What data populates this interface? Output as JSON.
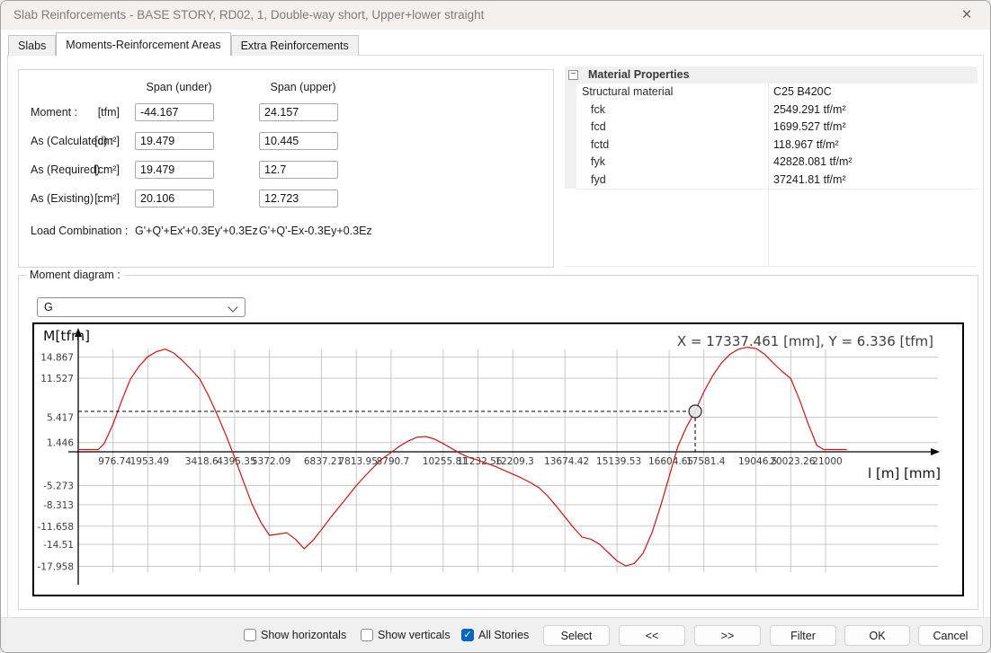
{
  "window": {
    "title": "Slab Reinforcements - BASE STORY, RD02, 1, Double-way short, Upper+lower straight",
    "close_glyph": "×"
  },
  "tabs": [
    {
      "label": "Slabs"
    },
    {
      "label": "Moments-Reinforcement Areas"
    },
    {
      "label": "Extra Reinforcements"
    }
  ],
  "form": {
    "col_headers": [
      "Span (under)",
      "Span (upper)"
    ],
    "rows": [
      {
        "label": "Moment :",
        "unit": "[tfm]",
        "under": "-44.167",
        "upper": "24.157"
      },
      {
        "label": "As (Calculated) :",
        "unit": "[cm²]",
        "under": "19.479",
        "upper": "10.445"
      },
      {
        "label": "As (Required) :",
        "unit": "[cm²]",
        "under": "19.479",
        "upper": "12.7"
      },
      {
        "label": "As (Existing) :",
        "unit": "[cm²]",
        "under": "20.106",
        "upper": "12.723"
      }
    ],
    "load_combination": {
      "label": "Load Combination :",
      "under": "G'+Q'+Ex'+0.3Ey'+0.3Ez",
      "upper": "G'+Q'-Ex-0.3Ey+0.3Ez"
    }
  },
  "material_properties": {
    "title": "Material Properties",
    "collapse_glyph": "−",
    "rows": [
      {
        "name": "Structural material",
        "value": "C25 B420C",
        "indent": 0
      },
      {
        "name": "fck",
        "value": "2549.291 tf/m²",
        "indent": 1
      },
      {
        "name": "fcd",
        "value": "1699.527 tf/m²",
        "indent": 1
      },
      {
        "name": "fctd",
        "value": "118.967 tf/m²",
        "indent": 1
      },
      {
        "name": "fyk",
        "value": "42828.081 tf/m²",
        "indent": 1
      },
      {
        "name": "fyd",
        "value": "37241.81 tf/m²",
        "indent": 1
      }
    ]
  },
  "moment_diagram": {
    "group_label": "Moment diagram :",
    "selected_option": "G"
  },
  "chart_data": {
    "type": "line",
    "ylabel": "M[tfm]",
    "xlabel": "l [m] [mm]",
    "readout": "X = 17337.461 [mm],  Y = 6.336 [tfm]",
    "marker": {
      "x": 17337.461,
      "y": 6.336
    },
    "line_color": "#cc1414",
    "grid_color": "#c9c9c9",
    "xlim": [
      0,
      23000
    ],
    "ylim": [
      -19.5,
      17.5
    ],
    "x_ticks": [
      976.74,
      1953.49,
      3418.6,
      4395.35,
      5372.09,
      6837.21,
      7813.95,
      8790.7,
      10255.81,
      11232.56,
      12209.3,
      13674.42,
      15139.53,
      16604.65,
      17581.4,
      19046.5,
      20023.26,
      21000
    ],
    "y_ticks": [
      14.867,
      11.527,
      5.417,
      1.446,
      -5.273,
      -8.313,
      -11.658,
      -14.51,
      -17.958
    ],
    "series": [
      {
        "name": "G",
        "points": [
          [
            0,
            0.35
          ],
          [
            560,
            0.35
          ],
          [
            730,
            1.3
          ],
          [
            976,
            4.3
          ],
          [
            1220,
            8.0
          ],
          [
            1465,
            11.4
          ],
          [
            1709,
            13.4
          ],
          [
            1953,
            14.9
          ],
          [
            2197,
            15.7
          ],
          [
            2441,
            16.1
          ],
          [
            2686,
            15.5
          ],
          [
            2930,
            14.3
          ],
          [
            3174,
            12.9
          ],
          [
            3418,
            11.4
          ],
          [
            3662,
            8.8
          ],
          [
            3906,
            5.8
          ],
          [
            4151,
            2.6
          ],
          [
            4395,
            -0.9
          ],
          [
            4639,
            -4.6
          ],
          [
            4883,
            -8.2
          ],
          [
            5128,
            -11.0
          ],
          [
            5372,
            -13.1
          ],
          [
            5616,
            -12.9
          ],
          [
            5860,
            -12.7
          ],
          [
            6104,
            -13.7
          ],
          [
            6348,
            -15.2
          ],
          [
            6593,
            -13.9
          ],
          [
            6837,
            -12.2
          ],
          [
            7081,
            -10.4
          ],
          [
            7325,
            -8.7
          ],
          [
            7570,
            -7.0
          ],
          [
            7814,
            -5.3
          ],
          [
            8058,
            -3.8
          ],
          [
            8302,
            -2.4
          ],
          [
            8546,
            -1.1
          ],
          [
            8791,
            -0.1
          ],
          [
            9035,
            0.9
          ],
          [
            9279,
            1.7
          ],
          [
            9523,
            2.3
          ],
          [
            9767,
            2.4
          ],
          [
            10011,
            2.0
          ],
          [
            10256,
            1.3
          ],
          [
            10500,
            0.5
          ],
          [
            10744,
            -0.3
          ],
          [
            10988,
            -0.9
          ],
          [
            11233,
            -1.3
          ],
          [
            11477,
            -1.8
          ],
          [
            11721,
            -2.3
          ],
          [
            11965,
            -2.9
          ],
          [
            12209,
            -3.5
          ],
          [
            12453,
            -4.1
          ],
          [
            12698,
            -4.8
          ],
          [
            12942,
            -5.6
          ],
          [
            13186,
            -6.9
          ],
          [
            13430,
            -8.5
          ],
          [
            13674,
            -10.2
          ],
          [
            13919,
            -11.9
          ],
          [
            14163,
            -13.4
          ],
          [
            14407,
            -13.7
          ],
          [
            14651,
            -14.5
          ],
          [
            14895,
            -15.8
          ],
          [
            15140,
            -17.1
          ],
          [
            15384,
            -17.9
          ],
          [
            15628,
            -17.5
          ],
          [
            15872,
            -15.9
          ],
          [
            16116,
            -12.8
          ],
          [
            16361,
            -8.6
          ],
          [
            16605,
            -3.9
          ],
          [
            16849,
            0.8
          ],
          [
            17093,
            3.9
          ],
          [
            17337,
            6.336
          ],
          [
            17581,
            9.4
          ],
          [
            17825,
            11.9
          ],
          [
            18070,
            13.9
          ],
          [
            18314,
            15.3
          ],
          [
            18558,
            16.1
          ],
          [
            18802,
            16.4
          ],
          [
            19046,
            16.2
          ],
          [
            19291,
            15.3
          ],
          [
            19535,
            13.9
          ],
          [
            19779,
            12.6
          ],
          [
            20023,
            11.5
          ],
          [
            20267,
            8.2
          ],
          [
            20512,
            4.4
          ],
          [
            20756,
            1.0
          ],
          [
            20950,
            0.35
          ],
          [
            21600,
            0.35
          ]
        ]
      }
    ]
  },
  "bottom_bar": {
    "checkboxes": [
      {
        "label": "Show horizontals",
        "checked": false
      },
      {
        "label": "Show verticals",
        "checked": false
      },
      {
        "label": "All Stories",
        "checked": true
      }
    ],
    "check_glyph": "✓",
    "buttons": [
      {
        "label": "Select"
      },
      {
        "label": "<<"
      },
      {
        "label": ">>"
      },
      {
        "label": "Filter"
      },
      {
        "label": "OK"
      },
      {
        "label": "Cancel"
      }
    ]
  }
}
